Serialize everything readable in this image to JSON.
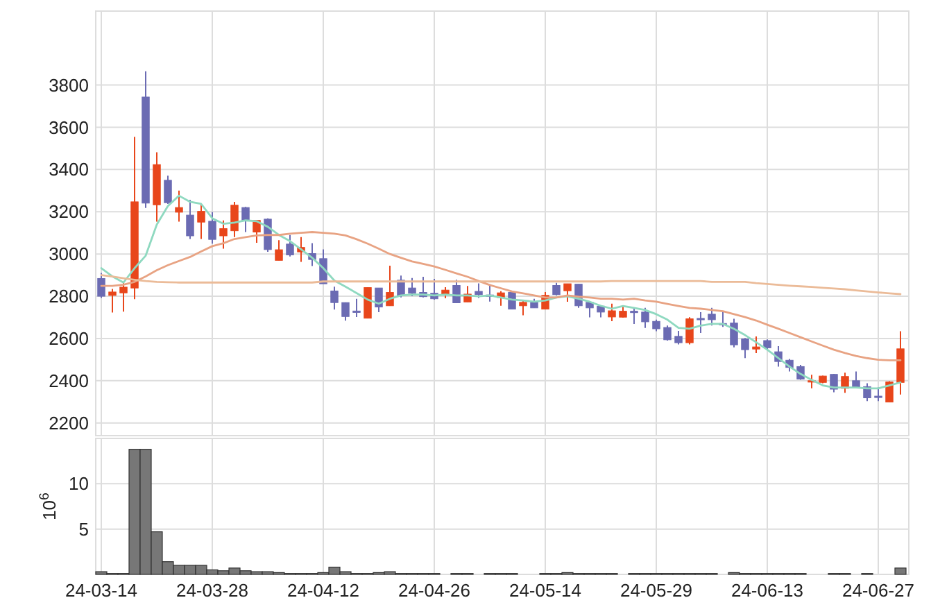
{
  "chart_data": [
    {
      "type": "candlestick",
      "categories": [
        null,
        null,
        null,
        null,
        null,
        null,
        null,
        null,
        null,
        null,
        null,
        null,
        null,
        null,
        null,
        null,
        null,
        null,
        null,
        null,
        null,
        null,
        null,
        null,
        null,
        null,
        null,
        null,
        null,
        null,
        null,
        null,
        null,
        null,
        null,
        null,
        null,
        null,
        null,
        null,
        null,
        null,
        null,
        null,
        null,
        null,
        null,
        null,
        null,
        null,
        null,
        null,
        null,
        null,
        null,
        null,
        null,
        null,
        null,
        null,
        null,
        null,
        null,
        null,
        null,
        null,
        null,
        null,
        null,
        null,
        null,
        null,
        null
      ],
      "ylim": [
        2140,
        4150
      ],
      "yticks": [
        2200,
        2400,
        2600,
        2800,
        3000,
        3200,
        3400,
        3600,
        3800
      ],
      "grid": true,
      "tick_labels": "y",
      "series": [
        {
          "ohlc": [
            [
              2884,
              2910,
              2792,
              2800
            ],
            [
              2804,
              2835,
              2723,
              2820
            ],
            [
              2816,
              2868,
              2727,
              2843
            ],
            [
              2839,
              3555,
              2786,
              3247
            ],
            [
              3743,
              3865,
              3218,
              3241
            ],
            [
              3233,
              3482,
              3153,
              3423
            ],
            [
              3349,
              3371,
              3237,
              3243
            ],
            [
              3198,
              3300,
              3153,
              3220
            ],
            [
              3184,
              3257,
              3071,
              3086
            ],
            [
              3151,
              3237,
              3071,
              3202
            ],
            [
              3155,
              3198,
              3049,
              3069
            ],
            [
              3086,
              3159,
              3025,
              3120
            ],
            [
              3110,
              3247,
              3080,
              3231
            ],
            [
              3220,
              3223,
              3104,
              3159
            ],
            [
              3104,
              3159,
              3053,
              3159
            ],
            [
              3165,
              3169,
              3010,
              3021
            ],
            [
              2970,
              3065,
              2970,
              3020
            ],
            [
              3047,
              3090,
              2988,
              2996
            ],
            [
              3010,
              3080,
              2963,
              3031
            ],
            [
              3002,
              3051,
              2943,
              2974
            ],
            [
              2978,
              3022,
              2859,
              2859
            ],
            [
              2825,
              2845,
              2737,
              2770
            ],
            [
              2770,
              2770,
              2684,
              2704
            ],
            [
              2730,
              2788,
              2702,
              2726
            ],
            [
              2696,
              2843,
              2696,
              2841
            ],
            [
              2839,
              2839,
              2725,
              2749
            ],
            [
              2755,
              2945,
              2755,
              2818
            ],
            [
              2876,
              2898,
              2794,
              2804
            ],
            [
              2839,
              2886,
              2800,
              2814
            ],
            [
              2818,
              2892,
              2794,
              2798
            ],
            [
              2814,
              2882,
              2784,
              2788
            ],
            [
              2810,
              2843,
              2790,
              2829
            ],
            [
              2851,
              2878,
              2769,
              2769
            ],
            [
              2773,
              2849,
              2773,
              2810
            ],
            [
              2823,
              2861,
              2792,
              2808
            ],
            [
              2806,
              2857,
              2775,
              2802
            ],
            [
              2794,
              2824,
              2755,
              2816
            ],
            [
              2818,
              2818,
              2739,
              2739
            ],
            [
              2755,
              2780,
              2710,
              2771
            ],
            [
              2771,
              2788,
              2745,
              2745
            ],
            [
              2739,
              2820,
              2739,
              2804
            ],
            [
              2851,
              2863,
              2804,
              2808
            ],
            [
              2826,
              2859,
              2774,
              2859
            ],
            [
              2857,
              2857,
              2745,
              2755
            ],
            [
              2771,
              2771,
              2700,
              2745
            ],
            [
              2753,
              2753,
              2700,
              2725
            ],
            [
              2702,
              2765,
              2682,
              2731
            ],
            [
              2701,
              2754,
              2699,
              2729
            ],
            [
              2729,
              2745,
              2669,
              2725
            ],
            [
              2725,
              2745,
              2650,
              2679
            ],
            [
              2681,
              2689,
              2634,
              2646
            ],
            [
              2652,
              2661,
              2590,
              2594
            ],
            [
              2610,
              2636,
              2572,
              2580
            ],
            [
              2580,
              2701,
              2572,
              2693
            ],
            [
              2695,
              2725,
              2626,
              2691
            ],
            [
              2715,
              2745,
              2661,
              2689
            ],
            [
              2671,
              2725,
              2655,
              2667
            ],
            [
              2673,
              2693,
              2558,
              2570
            ],
            [
              2598,
              2602,
              2507,
              2547
            ],
            [
              2550,
              2610,
              2531,
              2560
            ],
            [
              2590,
              2596,
              2547,
              2556
            ],
            [
              2537,
              2564,
              2467,
              2491
            ],
            [
              2497,
              2503,
              2444,
              2463
            ],
            [
              2467,
              2475,
              2404,
              2408
            ],
            [
              2396,
              2428,
              2364,
              2400
            ],
            [
              2392,
              2424,
              2388,
              2422
            ],
            [
              2430,
              2432,
              2345,
              2360
            ],
            [
              2364,
              2438,
              2343,
              2420
            ],
            [
              2400,
              2444,
              2368,
              2368
            ],
            [
              2372,
              2388,
              2303,
              2319
            ],
            [
              2327,
              2368,
              2303,
              2325
            ],
            [
              2299,
              2398,
              2299,
              2394
            ],
            [
              2392,
              2634,
              2335,
              2551
            ]
          ],
          "colors": [
            "#6b6bb3",
            "#e8461b",
            "#e8461b",
            "#e8461b",
            "#6b6bb3",
            "#e8461b",
            "#6b6bb3",
            "#e8461b",
            "#6b6bb3",
            "#e8461b",
            "#6b6bb3",
            "#e8461b",
            "#e8461b",
            "#6b6bb3",
            "#e8461b",
            "#6b6bb3",
            "#e8461b",
            "#6b6bb3",
            "#e8461b",
            "#6b6bb3",
            "#6b6bb3",
            "#6b6bb3",
            "#6b6bb3",
            "#6b6bb3",
            "#e8461b",
            "#6b6bb3",
            "#e8461b",
            "#6b6bb3",
            "#6b6bb3",
            "#6b6bb3",
            "#6b6bb3",
            "#e8461b",
            "#6b6bb3",
            "#e8461b",
            "#6b6bb3",
            "#6b6bb3",
            "#e8461b",
            "#6b6bb3",
            "#e8461b",
            "#6b6bb3",
            "#e8461b",
            "#6b6bb3",
            "#e8461b",
            "#6b6bb3",
            "#6b6bb3",
            "#6b6bb3",
            "#e8461b",
            "#e8461b",
            "#6b6bb3",
            "#6b6bb3",
            "#6b6bb3",
            "#6b6bb3",
            "#6b6bb3",
            "#e8461b",
            "#6b6bb3",
            "#6b6bb3",
            "#6b6bb3",
            "#6b6bb3",
            "#6b6bb3",
            "#e8461b",
            "#6b6bb3",
            "#6b6bb3",
            "#6b6bb3",
            "#6b6bb3",
            "#e8461b",
            "#e8461b",
            "#6b6bb3",
            "#e8461b",
            "#6b6bb3",
            "#6b6bb3",
            "#6b6bb3",
            "#e8461b",
            "#e8461b"
          ]
        },
        {
          "type": "line",
          "color": "#8fd9c0",
          "values": [
            2933,
            2894,
            2865,
            2933,
            2992,
            3139,
            3227,
            3276,
            3247,
            3237,
            3169,
            3143,
            3149,
            3159,
            3155,
            3129,
            3090,
            3061,
            3022,
            2982,
            2933,
            2874,
            2845,
            2815,
            2784,
            2765,
            2788,
            2804,
            2808,
            2808,
            2804,
            2808,
            2804,
            2804,
            2800,
            2804,
            2794,
            2784,
            2780,
            2774,
            2780,
            2794,
            2800,
            2788,
            2774,
            2755,
            2741,
            2754,
            2745,
            2735,
            2715,
            2689,
            2650,
            2646,
            2661,
            2669,
            2669,
            2646,
            2616,
            2582,
            2547,
            2507,
            2467,
            2432,
            2404,
            2378,
            2368,
            2368,
            2368,
            2364,
            2364,
            2378,
            2392
          ]
        },
        {
          "type": "line",
          "color": "#e8a383",
          "values": [
            2849,
            2849,
            2855,
            2868,
            2894,
            2923,
            2947,
            2967,
            2986,
            3012,
            3037,
            3051,
            3071,
            3080,
            3088,
            3090,
            3090,
            3096,
            3100,
            3104,
            3100,
            3096,
            3088,
            3070,
            3049,
            3025,
            3000,
            2982,
            2965,
            2953,
            2941,
            2925,
            2908,
            2892,
            2872,
            2853,
            2838,
            2823,
            2814,
            2804,
            2794,
            2794,
            2804,
            2798,
            2794,
            2788,
            2788,
            2784,
            2788,
            2780,
            2774,
            2764,
            2754,
            2745,
            2741,
            2735,
            2729,
            2715,
            2701,
            2685,
            2665,
            2646,
            2626,
            2606,
            2586,
            2566,
            2547,
            2531,
            2517,
            2507,
            2499,
            2497,
            2497
          ]
        },
        {
          "type": "line",
          "color": "#ebbb98",
          "values": [
            2900,
            2893,
            2885,
            2878,
            2872,
            2868,
            2866,
            2865,
            2865,
            2865,
            2865,
            2865,
            2865,
            2865,
            2865,
            2865,
            2865,
            2865,
            2865,
            2865,
            2870,
            2870,
            2870,
            2870,
            2870,
            2870,
            2870,
            2870,
            2870,
            2870,
            2870,
            2870,
            2870,
            2870,
            2870,
            2870,
            2870,
            2870,
            2870,
            2870,
            2870,
            2870,
            2870,
            2870,
            2870,
            2870,
            2872,
            2872,
            2872,
            2872,
            2872,
            2872,
            2872,
            2872,
            2872,
            2868,
            2868,
            2868,
            2868,
            2862,
            2858,
            2854,
            2850,
            2847,
            2844,
            2840,
            2837,
            2833,
            2828,
            2823,
            2818,
            2814,
            2810
          ]
        }
      ]
    },
    {
      "type": "bar",
      "categories": [
        "24-03-14",
        null,
        null,
        null,
        null,
        null,
        null,
        null,
        null,
        null,
        "24-03-28",
        null,
        null,
        null,
        null,
        null,
        null,
        null,
        null,
        null,
        "24-04-12",
        null,
        null,
        null,
        null,
        null,
        null,
        null,
        null,
        null,
        "24-04-26",
        null,
        null,
        null,
        null,
        null,
        null,
        null,
        null,
        null,
        "24-05-14",
        null,
        null,
        null,
        null,
        null,
        null,
        null,
        null,
        null,
        "24-05-29",
        null,
        null,
        null,
        null,
        null,
        null,
        null,
        null,
        null,
        "24-06-13",
        null,
        null,
        null,
        null,
        null,
        null,
        null,
        null,
        null,
        "24-06-27",
        null,
        null
      ],
      "ylabel": "10$^{6}$",
      "ylim": [
        0,
        15
      ],
      "yticks": [
        5,
        10
      ],
      "grid": true,
      "color": "#777777",
      "values": [
        0.3,
        0.1,
        0.1,
        13.8,
        13.8,
        4.7,
        1.4,
        1,
        1,
        1,
        0.5,
        0.4,
        0.7,
        0.4,
        0.3,
        0.3,
        0.2,
        0.1,
        0.1,
        0.1,
        0.2,
        0.8,
        0.3,
        0.1,
        0.1,
        0.2,
        0.3,
        0.1,
        0.1,
        0.1,
        0.1,
        0,
        0.1,
        0.1,
        0,
        0.1,
        0.1,
        0.1,
        0,
        0,
        0.1,
        0.1,
        0.2,
        0.1,
        0.1,
        0.1,
        0.1,
        0,
        0.1,
        0.1,
        0.1,
        0.1,
        0.1,
        0.1,
        0.1,
        0.1,
        0,
        0.2,
        0.1,
        0.1,
        0.1,
        0.1,
        0.1,
        0.1,
        0,
        0,
        0.1,
        0.1,
        0,
        0.1,
        0,
        0,
        0.7
      ]
    }
  ]
}
